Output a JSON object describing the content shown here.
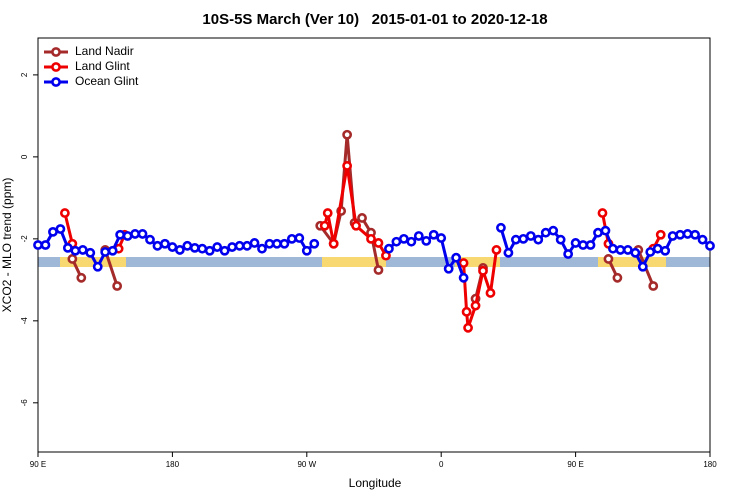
{
  "chart_data": {
    "type": "line",
    "title": "10S-5S March (Ver 10)   2015-01-01 to 2020-12-18",
    "x_label": "Longitude",
    "y_label": "XCO2 - MLO trend (ppm)",
    "xlim": [
      90,
      540
    ],
    "ylim": [
      -7.2,
      2.9
    ],
    "xticks": [
      {
        "value": 90,
        "label": "90 E"
      },
      180,
      {
        "value": 270,
        "label": "90 W"
      },
      {
        "value": 360,
        "label": "0"
      },
      {
        "value": 450,
        "label": "90 E"
      },
      {
        "value": 540,
        "label": "180"
      }
    ],
    "yticks": [
      2,
      0,
      -2,
      -4,
      -6
    ],
    "legend": "top-left",
    "series": [
      {
        "name": "Land Nadir",
        "color": "#a52a2a",
        "x": [
          113,
          119,
          127,
          135,
          143,
          210,
          279,
          288,
          293,
          297,
          302,
          307,
          313,
          318,
          350,
          383,
          388,
          430,
          472,
          478,
          485,
          492,
          502
        ],
        "values": [
          -2.49,
          -2.95,
          null,
          -2.27,
          -3.15,
          null,
          -1.68,
          -2.12,
          -1.32,
          0.54,
          -1.61,
          -1.49,
          -1.85,
          -2.76,
          null,
          -3.46,
          -2.71,
          null,
          -2.49,
          -2.95,
          null,
          -2.27,
          -3.15
        ]
      },
      {
        "name": "Land Glint",
        "color": "#ee0000",
        "x": [
          108,
          113,
          128,
          144,
          148,
          215,
          282,
          284,
          288,
          297,
          303,
          313,
          318,
          323,
          350,
          375,
          377,
          378,
          383,
          388,
          393,
          397,
          430,
          468,
          472,
          487,
          502,
          507
        ],
        "values": [
          -1.37,
          -2.12,
          null,
          -2.24,
          -1.9,
          null,
          -1.68,
          -1.37,
          -2.12,
          -0.22,
          -1.68,
          -2.0,
          -2.1,
          -2.41,
          null,
          -2.59,
          -3.78,
          -4.17,
          -3.63,
          -2.78,
          -3.32,
          -2.27,
          null,
          -1.37,
          -2.12,
          null,
          -2.24,
          -1.9
        ]
      },
      {
        "name": "Ocean Glint",
        "color": "#0000ee",
        "x": [
          90,
          95,
          100,
          105,
          110,
          115,
          120,
          125,
          130,
          135,
          140,
          145,
          150,
          155,
          160,
          165,
          170,
          175,
          180,
          185,
          190,
          195,
          200,
          205,
          210,
          215,
          220,
          225,
          230,
          235,
          240,
          245,
          250,
          255,
          260,
          265,
          270,
          275,
          280,
          285,
          290,
          295,
          300,
          305,
          310,
          315,
          320,
          325,
          330,
          335,
          340,
          345,
          350,
          355,
          360,
          365,
          370,
          375,
          380,
          385,
          390,
          395,
          400,
          405,
          410,
          415,
          420,
          425,
          430,
          435,
          440,
          445,
          450,
          455,
          460,
          465,
          470,
          475,
          480,
          485,
          490,
          495,
          500,
          505,
          510,
          515,
          520,
          525,
          530,
          535,
          540
        ],
        "values": [
          -2.15,
          -2.15,
          -1.83,
          -1.76,
          -2.22,
          -2.29,
          -2.27,
          -2.34,
          -2.68,
          -2.32,
          -2.29,
          -1.9,
          -1.93,
          -1.88,
          -1.88,
          -2.02,
          -2.17,
          -2.12,
          -2.2,
          -2.27,
          -2.17,
          -2.22,
          -2.24,
          -2.29,
          -2.2,
          -2.29,
          -2.2,
          -2.17,
          -2.17,
          -2.1,
          -2.24,
          -2.12,
          -2.12,
          -2.12,
          -2.0,
          -1.98,
          -2.29,
          -2.12,
          null,
          null,
          null,
          null,
          null,
          null,
          null,
          null,
          null,
          -2.24,
          -2.07,
          -2.0,
          -2.07,
          -1.93,
          -2.05,
          -1.9,
          -1.98,
          -2.73,
          -2.46,
          -2.95,
          null,
          null,
          null,
          null,
          -1.73,
          -2.34,
          -2.02,
          -2.0,
          -1.93,
          -2.02,
          -1.85,
          -1.8,
          -2.02,
          -2.37,
          -2.1,
          -2.15,
          -2.15,
          -1.85,
          -1.8,
          -2.24,
          -2.27,
          -2.27,
          -2.34,
          -2.68,
          -2.32,
          -2.24,
          -2.29,
          -1.93,
          -1.9,
          -1.88,
          -1.9,
          -2.02,
          -2.17
        ]
      }
    ]
  }
}
